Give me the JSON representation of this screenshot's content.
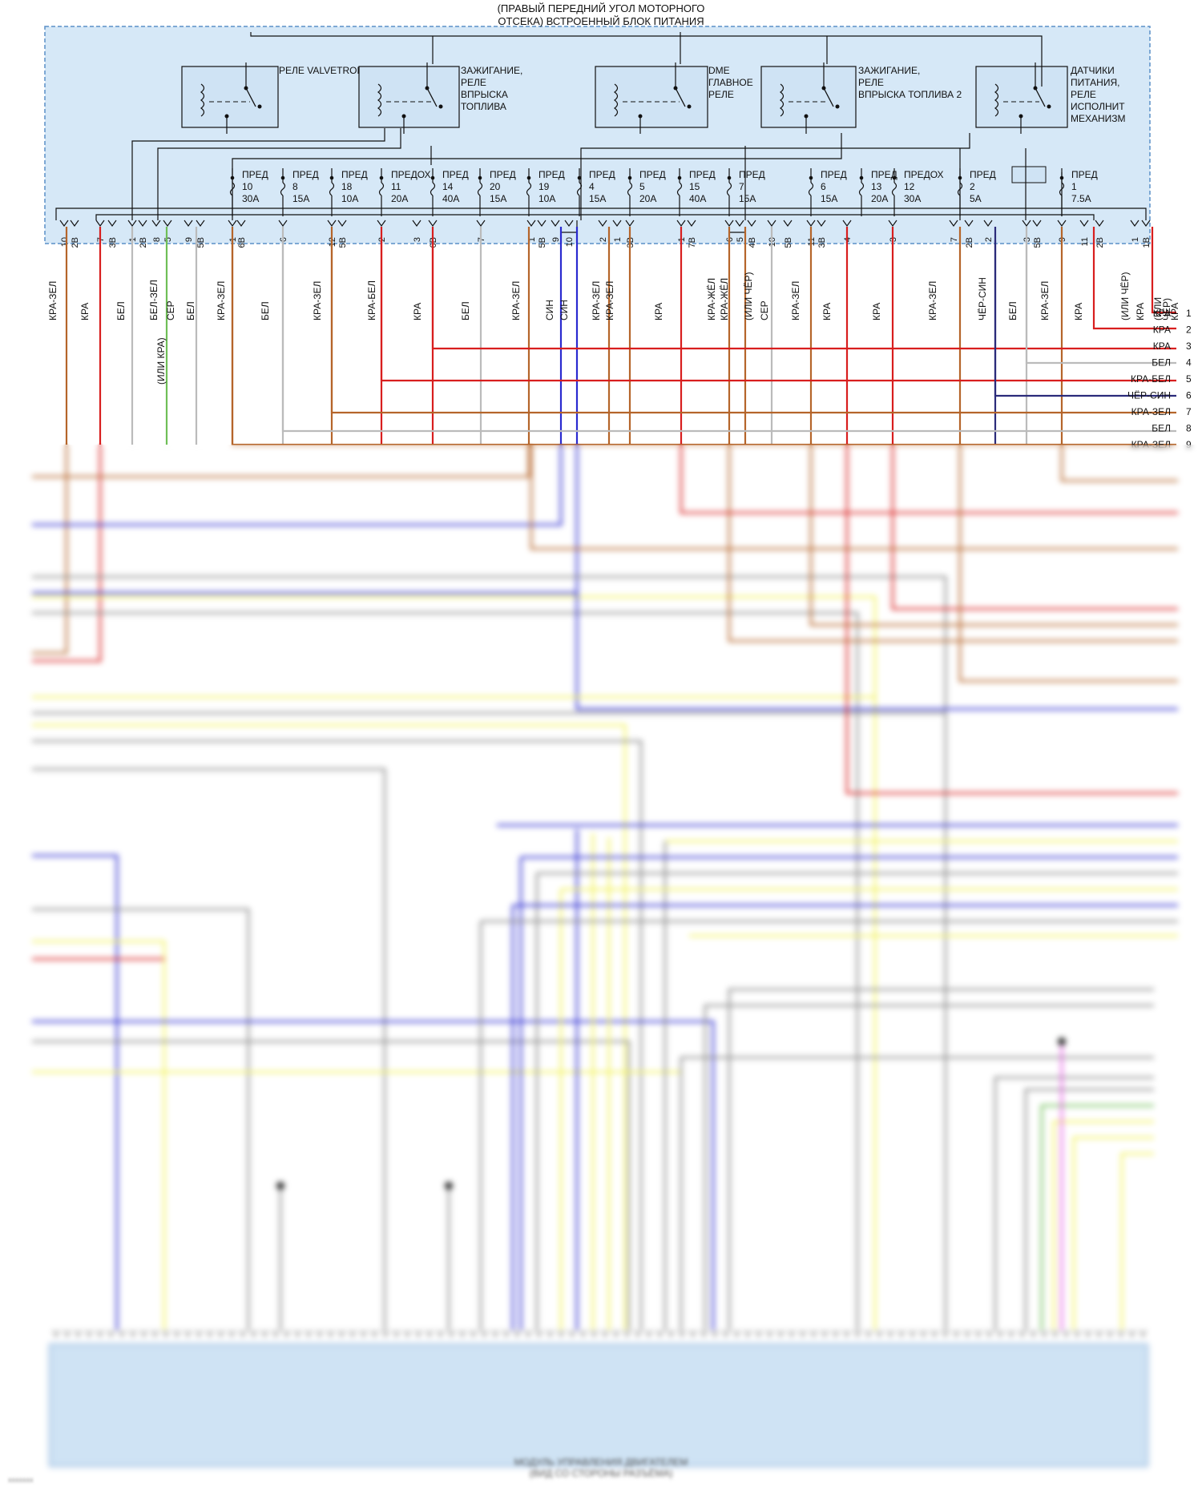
{
  "box_title": "(ПРАВЫЙ ПЕРЕДНИЙ УГОЛ МОТОРНОГО\nОТСЕКА) ВСТРОЕННЫЙ БЛОК ПИТАНИЯ",
  "relays": [
    {
      "label": "РЕЛЕ VALVETRONIC"
    },
    {
      "label": "ЗАЖИГАНИЕ,\nРЕЛЕ\nВПРЫСКА\nТОПЛИВА"
    },
    {
      "label": "DME\nГЛАВНОЕ\nРЕЛЕ"
    },
    {
      "label": "ЗАЖИГАНИЕ,\nРЕЛЕ\nВПРЫСКА ТОПЛИВА 2"
    },
    {
      "label": "ДАТЧИКИ\nПИТАНИЯ,\nРЕЛЕ\nИСПОЛНИТ\nМЕХАНИЗМ"
    }
  ],
  "fuses": [
    {
      "label": "ПРЕД\n10\n30A"
    },
    {
      "label": "ПРЕД\n8\n15A"
    },
    {
      "label": "ПРЕД\n18\n10A"
    },
    {
      "label": "ПРЕДОХ\n11\n20A"
    },
    {
      "label": "ПРЕД\n14\n40A"
    },
    {
      "label": "ПРЕД\n20\n15A"
    },
    {
      "label": "ПРЕД\n19\n10A"
    },
    {
      "label": "ПРЕД\n4\n15A"
    },
    {
      "label": "ПРЕД\n5\n20A"
    },
    {
      "label": "ПРЕД\n15\n40A"
    },
    {
      "label": "ПРЕД\n7\n15A"
    },
    {
      "label": "ПРЕД\n6\n15A"
    },
    {
      "label": "ПРЕД\n13\n20A"
    },
    {
      "label": "ПРЕДОХ\n12\n30A"
    },
    {
      "label": "ПРЕД\n2\n5A"
    },
    {
      "label": "ПРЕД\n1\n7.5A"
    }
  ],
  "pins": [
    {
      "label": "10"
    },
    {
      "label": "2B"
    },
    {
      "label": "7"
    },
    {
      "label": "3B"
    },
    {
      "label": "1"
    },
    {
      "label": "2B"
    },
    {
      "label": "8"
    },
    {
      "label": "5"
    },
    {
      "label": "9"
    },
    {
      "label": "5B"
    },
    {
      "label": "1"
    },
    {
      "label": "6B"
    },
    {
      "label": "6"
    },
    {
      "label": "12"
    },
    {
      "label": "5B"
    },
    {
      "label": "2"
    },
    {
      "label": "3"
    },
    {
      "label": "6B"
    },
    {
      "label": "7"
    },
    {
      "label": "1"
    },
    {
      "label": "5B"
    },
    {
      "label": "9"
    },
    {
      "label": "10"
    },
    {
      "label": "2"
    },
    {
      "label": "1"
    },
    {
      "label": "3B"
    },
    {
      "label": "1"
    },
    {
      "label": "7B"
    },
    {
      "label": "6"
    },
    {
      "label": "5"
    },
    {
      "label": "4B"
    },
    {
      "label": "10"
    },
    {
      "label": "5B"
    },
    {
      "label": "11"
    },
    {
      "label": "3B"
    },
    {
      "label": "4"
    },
    {
      "label": "3"
    },
    {
      "label": "7"
    },
    {
      "label": "2B"
    },
    {
      "label": "2"
    },
    {
      "label": "3"
    },
    {
      "label": "5B"
    },
    {
      "label": "9"
    },
    {
      "label": "11"
    },
    {
      "label": "2B"
    },
    {
      "label": "1"
    },
    {
      "label": "1B"
    }
  ],
  "wire_labels": [
    {
      "label": "КРА-ЗЕЛ"
    },
    {
      "label": "КРА"
    },
    {
      "label": "БЕЛ"
    },
    {
      "label": "БЕЛ-ЗЕЛ"
    },
    {
      "label": "(ИЛИ КРА)"
    },
    {
      "label": "СЕР"
    },
    {
      "label": "БЕЛ"
    },
    {
      "label": "КРА-ЗЕЛ"
    },
    {
      "label": "БЕЛ"
    },
    {
      "label": "КРА-ЗЕЛ"
    },
    {
      "label": "КРА-БЕЛ"
    },
    {
      "label": "КРА"
    },
    {
      "label": "БЕЛ"
    },
    {
      "label": "КРА-ЗЕЛ"
    },
    {
      "label": "СИН"
    },
    {
      "label": "СИН"
    },
    {
      "label": "КРА-ЗЕЛ"
    },
    {
      "label": "КРА-ЗЕЛ"
    },
    {
      "label": "КРА"
    },
    {
      "label": "КРА-ЖЁЛ"
    },
    {
      "label": "КРА-ЖЁЛ"
    },
    {
      "label": "(ИЛИ ЧЁР)"
    },
    {
      "label": "СЕР"
    },
    {
      "label": "КРА-ЗЕЛ"
    },
    {
      "label": "КРА"
    },
    {
      "label": "КРА"
    },
    {
      "label": "КРА-ЗЕЛ"
    },
    {
      "label": "ЧЁР-СИН"
    },
    {
      "label": "БЕЛ"
    },
    {
      "label": "КРА-ЗЕЛ"
    },
    {
      "label": "КРА"
    },
    {
      "label": "(ИЛИ ЧЁР)"
    },
    {
      "label": "КРА"
    },
    {
      "label": "(ИЛИ"
    },
    {
      "label": "ЧЁР)"
    },
    {
      "label": "КРА"
    }
  ],
  "right_connector": [
    {
      "color": "КРА",
      "num": "1"
    },
    {
      "color": "КРА",
      "num": "2"
    },
    {
      "color": "КРА",
      "num": "3"
    },
    {
      "color": "БЕЛ",
      "num": "4"
    },
    {
      "color": "КРА-БЕЛ",
      "num": "5"
    },
    {
      "color": "ЧЁР-СИН",
      "num": "6"
    },
    {
      "color": "КРА-ЗЕЛ",
      "num": "7"
    },
    {
      "color": "БЕЛ",
      "num": "8"
    },
    {
      "color": "КРА-ЗЕЛ",
      "num": "9"
    }
  ],
  "colors": {
    "block_fill": "#d6e8f7",
    "block_border": "#5a8fc7",
    "red": "#d81e1e",
    "red_green": "#b5652a",
    "blue": "#2a2ad0",
    "white_wire": "#bbbbbb",
    "yellow": "#f2f25a",
    "gray": "#8c8c8c",
    "green": "#6fbf57",
    "magenta": "#e55ee5",
    "dark_blue": "#2b2b7a"
  },
  "ecu_caption": "МОДУЛЬ УПРАВЛЕНИЯ ДВИГАТЕЛЕМ\n(ВИД СО СТОРОНЫ РАЗЪЁМА)",
  "footer_id": "xxxxxxx"
}
